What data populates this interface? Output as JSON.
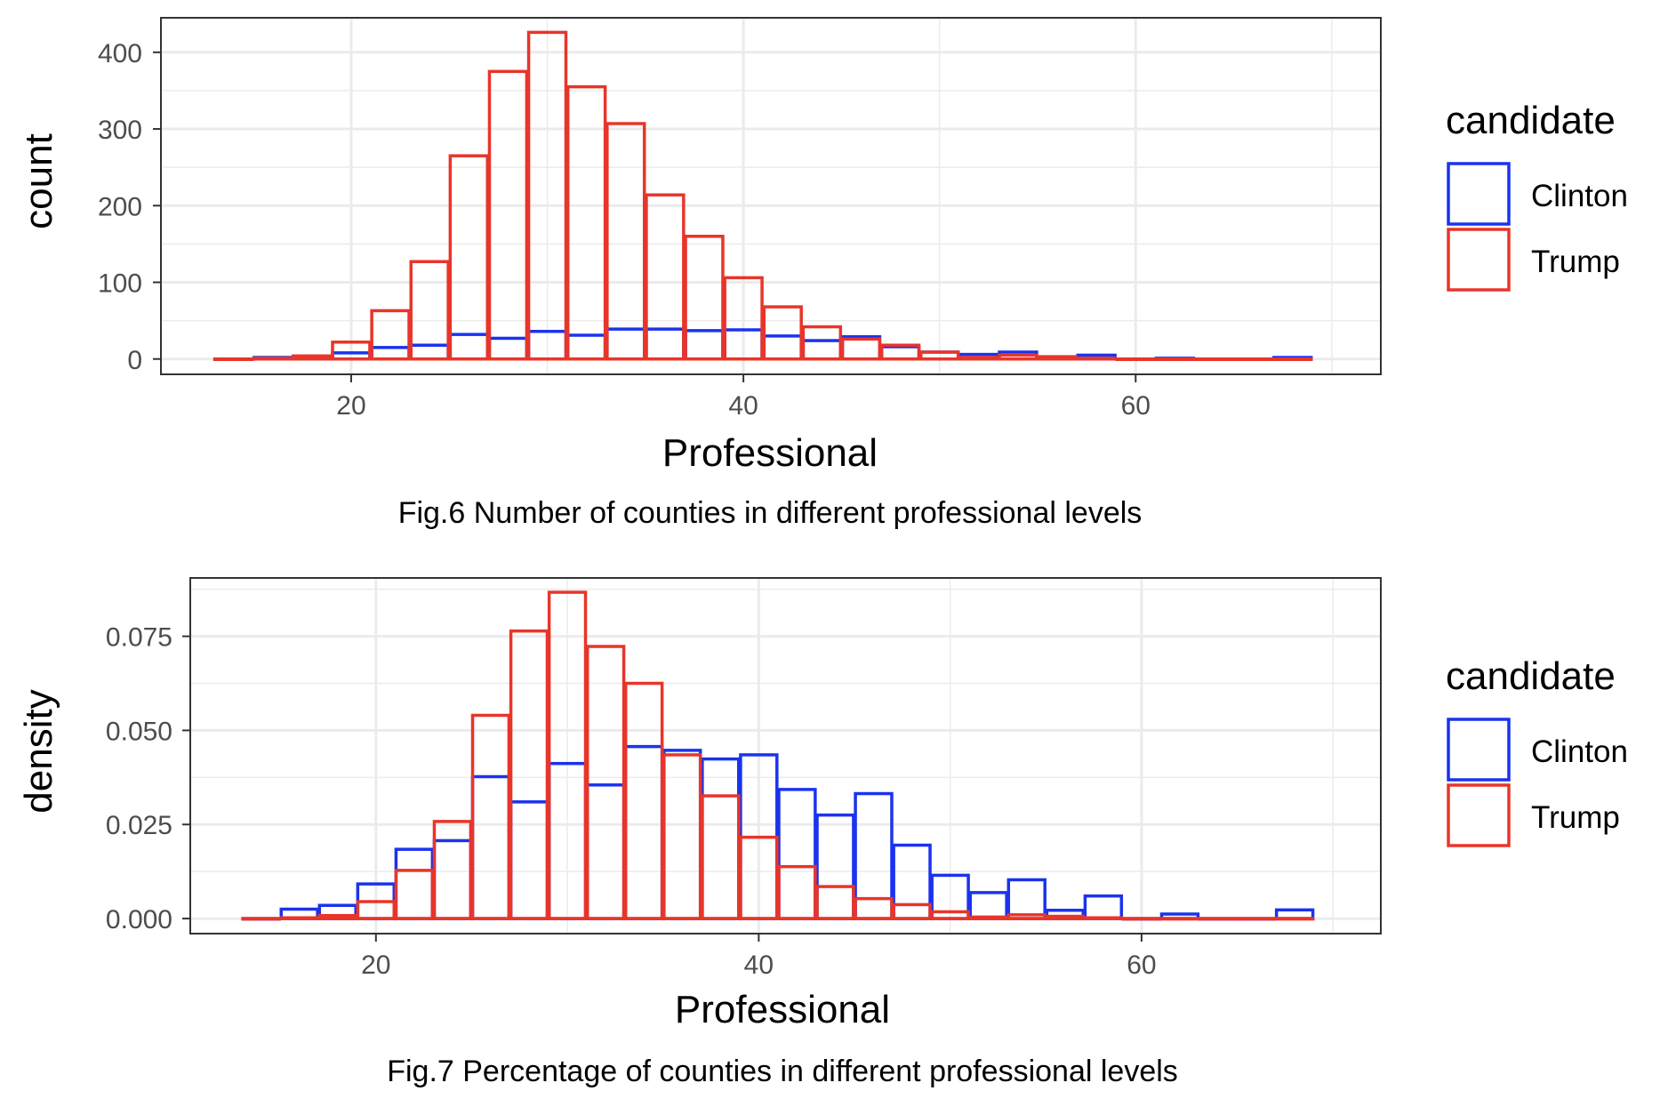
{
  "colors": {
    "Clinton": "#1a33ee",
    "Trump": "#e8352a"
  },
  "chart_data": [
    {
      "type": "bar",
      "ylabel": "count",
      "xlabel": "Professional",
      "caption": "Fig.6 Number of counties in different professional levels",
      "legend_title": "candidate",
      "legend_position": "right",
      "grid": true,
      "xlim": [
        10.3,
        72.5
      ],
      "ylim": [
        -20,
        445
      ],
      "x_ticks": [
        20,
        40,
        60
      ],
      "y_ticks": [
        0,
        100,
        200,
        300,
        400
      ],
      "y_tick_labels": [
        "0",
        "100",
        "200",
        "300",
        "400"
      ],
      "bin_centers": [
        14,
        16,
        18,
        20,
        22,
        24,
        26,
        28,
        30,
        32,
        34,
        36,
        38,
        40,
        42,
        44,
        46,
        48,
        50,
        52,
        54,
        56,
        58,
        60,
        62,
        64,
        66,
        68
      ],
      "bin_width": 1.9,
      "series": [
        {
          "name": "Clinton",
          "values": [
            0,
            2,
            3,
            8,
            15,
            18,
            32,
            27,
            36,
            31,
            39,
            39,
            37,
            38,
            30,
            24,
            29,
            16,
            9,
            6,
            9,
            2,
            5,
            0,
            1,
            0,
            0,
            2
          ]
        },
        {
          "name": "Trump",
          "values": [
            0,
            1,
            4,
            22,
            63,
            127,
            265,
            375,
            426,
            355,
            307,
            214,
            160,
            106,
            68,
            42,
            26,
            18,
            9,
            2,
            5,
            3,
            1,
            0,
            0,
            0,
            0,
            0
          ]
        }
      ]
    },
    {
      "type": "bar",
      "ylabel": "density",
      "xlabel": "Professional",
      "caption": "Fig.7 Percentage of counties in different professional levels",
      "legend_title": "candidate",
      "legend_position": "right",
      "grid": true,
      "xlim": [
        10.3,
        72.5
      ],
      "ylim": [
        -0.004,
        0.0905
      ],
      "x_ticks": [
        20,
        40,
        60
      ],
      "y_ticks": [
        0,
        0.025,
        0.05,
        0.075
      ],
      "y_tick_labels": [
        "0.000",
        "0.025",
        "0.050",
        "0.075"
      ],
      "bin_centers": [
        14,
        16,
        18,
        20,
        22,
        24,
        26,
        28,
        30,
        32,
        34,
        36,
        38,
        40,
        42,
        44,
        46,
        48,
        50,
        52,
        54,
        56,
        58,
        60,
        62,
        64,
        66,
        68
      ],
      "bin_width": 1.9,
      "series": [
        {
          "name": "Clinton",
          "values": [
            0,
            0.0025,
            0.0035,
            0.0092,
            0.0184,
            0.0207,
            0.0377,
            0.031,
            0.0412,
            0.0355,
            0.0457,
            0.0447,
            0.0424,
            0.0435,
            0.0343,
            0.0275,
            0.0332,
            0.0195,
            0.0115,
            0.0069,
            0.0103,
            0.0022,
            0.006,
            0,
            0.0012,
            0,
            0,
            0.0023
          ]
        },
        {
          "name": "Trump",
          "values": [
            0,
            0.0002,
            0.0008,
            0.0045,
            0.0128,
            0.0258,
            0.054,
            0.0764,
            0.0867,
            0.0723,
            0.0625,
            0.0435,
            0.0326,
            0.0216,
            0.0138,
            0.0085,
            0.0053,
            0.0037,
            0.0018,
            0.0004,
            0.001,
            0.0006,
            0.0002,
            0,
            0,
            0,
            0,
            0
          ]
        }
      ]
    }
  ]
}
